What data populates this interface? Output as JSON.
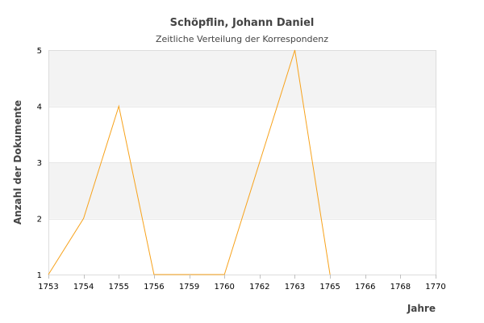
{
  "chart_data": {
    "type": "line",
    "title": "Schöpflin, Johann Daniel",
    "subtitle": "Zeitliche Verteilung der Korrespondenz",
    "xlabel": "Jahre",
    "ylabel": "Anzahl der Dokumente",
    "categories": [
      "1753",
      "1754",
      "1755",
      "1756",
      "1759",
      "1760",
      "1762",
      "1763",
      "1765",
      "1766",
      "1768",
      "1770"
    ],
    "series": [
      {
        "values": [
          1,
          2,
          4,
          1,
          1,
          1,
          3,
          5,
          1,
          null,
          null,
          null
        ]
      }
    ],
    "ylim": [
      1,
      5
    ],
    "yticks": [
      1,
      2,
      3,
      4,
      5
    ],
    "grid": "horizontal alternating bands",
    "legend": "none",
    "colors": {
      "line": "#f7a21b",
      "band": "#f3f3f3",
      "gridline": "#e6e6e6"
    }
  }
}
